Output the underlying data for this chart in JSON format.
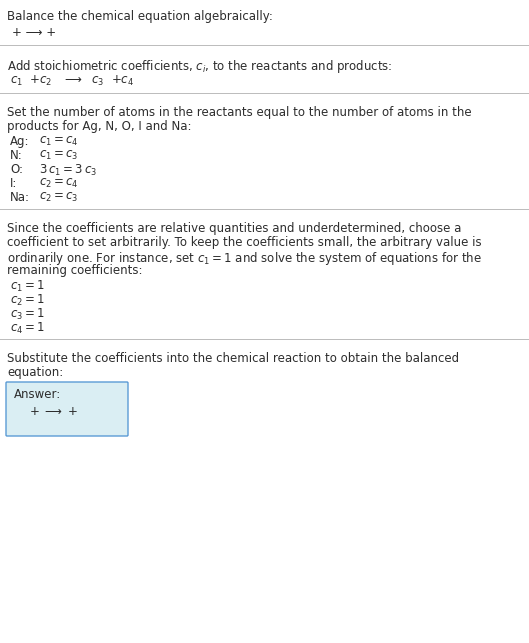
{
  "bg_color": "#ffffff",
  "text_color": "#2d2d2d",
  "line_color": "#bbbbbb",
  "title": "Balance the chemical equation algebraically:",
  "eq0": "+ ⟶ +",
  "section1_header": "Add stoichiometric coefficients, $c_i$, to the reactants and products:",
  "section1_eq": "$c_1$  +$c_2$   ⟶  $c_3$  +$c_4$",
  "section2_header_line1": "Set the number of atoms in the reactants equal to the number of atoms in the",
  "section2_header_line2": "products for Ag, N, O, I and Na:",
  "atom_equations": [
    [
      "Ag:",
      "$c_1 = c_4$"
    ],
    [
      "N:",
      "$c_1 = c_3$"
    ],
    [
      "O:",
      "$3\\,c_1 = 3\\,c_3$"
    ],
    [
      "I:",
      "$c_2 = c_4$"
    ],
    [
      "Na:",
      "$c_2 = c_3$"
    ]
  ],
  "section3_line1": "Since the coefficients are relative quantities and underdetermined, choose a",
  "section3_line2": "coefficient to set arbitrarily. To keep the coefficients small, the arbitrary value is",
  "section3_line3": "ordinarily one. For instance, set $c_1 = 1$ and solve the system of equations for the",
  "section3_line4": "remaining coefficients:",
  "coeff_values": [
    "$c_1 = 1$",
    "$c_2 = 1$",
    "$c_3 = 1$",
    "$c_4 = 1$"
  ],
  "section4_line1": "Substitute the coefficients into the chemical reaction to obtain the balanced",
  "section4_line2": "equation:",
  "answer_box_color": "#daeef3",
  "answer_box_border": "#5b9bd5",
  "answer_label": "Answer:",
  "answer_eq": "+ ⟶ +"
}
